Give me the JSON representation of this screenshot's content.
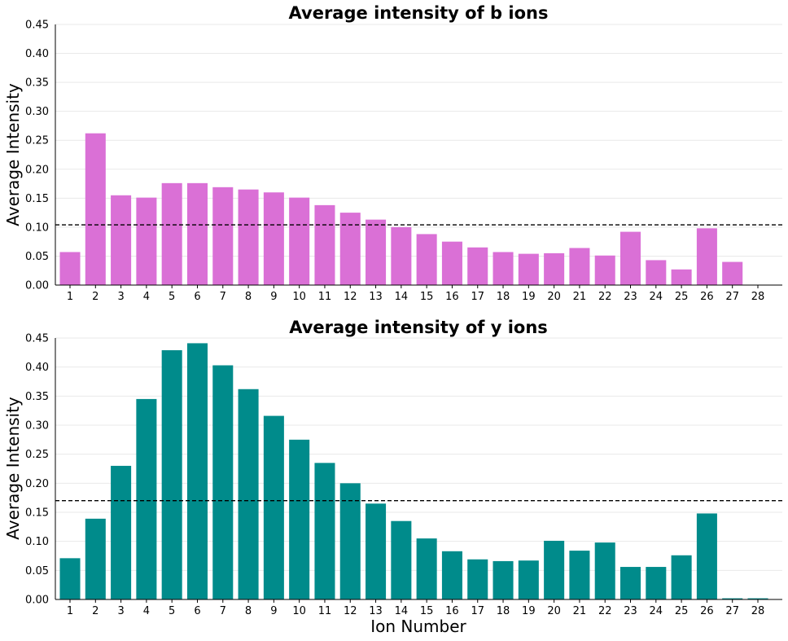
{
  "chart_data": [
    {
      "type": "bar",
      "title": "Average intensity of b ions",
      "xlabel": "",
      "ylabel": "Average Intensity",
      "ylim": [
        0,
        0.45
      ],
      "yticks": [
        "0.00",
        "0.05",
        "0.10",
        "0.15",
        "0.20",
        "0.25",
        "0.30",
        "0.35",
        "0.40",
        "0.45"
      ],
      "grid": "horizontal",
      "color": "#da70d6",
      "categories": [
        "1",
        "2",
        "3",
        "4",
        "5",
        "6",
        "7",
        "8",
        "9",
        "10",
        "11",
        "12",
        "13",
        "14",
        "15",
        "16",
        "17",
        "18",
        "19",
        "20",
        "21",
        "22",
        "23",
        "24",
        "25",
        "26",
        "27",
        "28"
      ],
      "values": [
        0.057,
        0.262,
        0.155,
        0.151,
        0.176,
        0.176,
        0.169,
        0.165,
        0.16,
        0.151,
        0.138,
        0.125,
        0.113,
        0.1,
        0.088,
        0.075,
        0.065,
        0.057,
        0.054,
        0.055,
        0.064,
        0.051,
        0.092,
        0.043,
        0.027,
        0.098,
        0.04,
        0.0
      ],
      "reference_line": 0.104
    },
    {
      "type": "bar",
      "title": "Average intensity of y ions",
      "xlabel": "Ion Number",
      "ylabel": "Average Intensity",
      "ylim": [
        0,
        0.45
      ],
      "yticks": [
        "0.00",
        "0.05",
        "0.10",
        "0.15",
        "0.20",
        "0.25",
        "0.30",
        "0.35",
        "0.40",
        "0.45"
      ],
      "grid": "horizontal",
      "color": "#008b8b",
      "categories": [
        "1",
        "2",
        "3",
        "4",
        "5",
        "6",
        "7",
        "8",
        "9",
        "10",
        "11",
        "12",
        "13",
        "14",
        "15",
        "16",
        "17",
        "18",
        "19",
        "20",
        "21",
        "22",
        "23",
        "24",
        "25",
        "26",
        "27",
        "28"
      ],
      "values": [
        0.071,
        0.139,
        0.23,
        0.345,
        0.429,
        0.441,
        0.403,
        0.362,
        0.316,
        0.275,
        0.235,
        0.2,
        0.165,
        0.135,
        0.105,
        0.083,
        0.069,
        0.066,
        0.067,
        0.101,
        0.084,
        0.098,
        0.056,
        0.056,
        0.076,
        0.148,
        0.002,
        0.002
      ],
      "reference_line": 0.17
    }
  ]
}
